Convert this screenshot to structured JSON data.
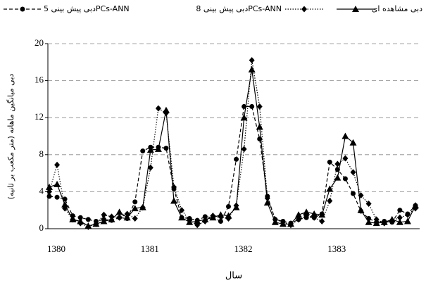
{
  "chart_data": {
    "type": "line",
    "x_label": "سال",
    "y_label": "دبی میانگین ماهانه (متر مکعب بر ثانیه)",
    "categories": [
      "1380",
      null,
      null,
      null,
      null,
      null,
      null,
      null,
      null,
      null,
      null,
      null,
      "1381",
      null,
      null,
      null,
      null,
      null,
      null,
      null,
      null,
      null,
      null,
      null,
      "1382",
      null,
      null,
      null,
      null,
      null,
      null,
      null,
      null,
      null,
      null,
      null,
      "1383",
      null,
      null,
      null,
      null,
      null,
      null,
      null,
      null,
      null,
      null,
      null
    ],
    "series": [
      {
        "name": "دبی مشاهده ای",
        "color": "#000000",
        "line_style": "solid",
        "marker": "triangle",
        "values": [
          4.5,
          4.8,
          2.6,
          1.0,
          0.8,
          0.3,
          0.5,
          0.8,
          1.0,
          1.8,
          1.2,
          2.2,
          2.3,
          8.5,
          8.6,
          12.8,
          3.0,
          1.2,
          0.7,
          0.8,
          1.0,
          1.2,
          1.5,
          1.4,
          2.3,
          12.0,
          17.2,
          11.0,
          2.8,
          0.7,
          0.5,
          0.5,
          1.5,
          1.8,
          1.6,
          1.5,
          4.3,
          5.5,
          10.0,
          9.3,
          2.0,
          0.7,
          0.6,
          0.7,
          1.0,
          0.7,
          0.8,
          2.5
        ]
      },
      {
        "name": "دبی پیش بینی 8PCs-ANN",
        "color": "#000000",
        "line_style": "dotted",
        "marker": "diamond",
        "values": [
          4.0,
          6.9,
          2.2,
          1.0,
          0.6,
          0.2,
          0.5,
          1.5,
          1.3,
          1.2,
          1.6,
          1.1,
          2.3,
          6.6,
          13.0,
          12.5,
          4.5,
          2.0,
          0.9,
          0.4,
          0.8,
          1.4,
          1.3,
          1.1,
          2.5,
          8.6,
          18.2,
          13.2,
          3.3,
          1.0,
          0.7,
          0.4,
          1.0,
          1.4,
          1.2,
          0.8,
          3.0,
          7.0,
          7.6,
          6.1,
          3.6,
          2.7,
          1.0,
          0.6,
          0.9,
          1.2,
          1.5,
          2.2
        ]
      },
      {
        "name": "دبی پیش بینی 5PCs-ANN",
        "color": "#000000",
        "line_style": "dashed",
        "marker": "circle",
        "values": [
          3.5,
          3.4,
          3.2,
          1.4,
          1.2,
          1.0,
          0.8,
          1.0,
          0.9,
          1.2,
          1.1,
          2.9,
          8.4,
          8.8,
          8.8,
          8.7,
          4.3,
          1.2,
          1.1,
          0.9,
          1.3,
          1.2,
          0.8,
          2.4,
          7.5,
          13.2,
          13.2,
          9.7,
          3.5,
          1.0,
          0.8,
          0.6,
          1.0,
          1.2,
          1.2,
          1.6,
          7.2,
          6.4,
          5.4,
          3.8,
          1.9,
          1.1,
          0.7,
          0.8,
          0.7,
          2.0,
          1.6,
          2.5
        ]
      }
    ],
    "ylim": [
      0,
      20
    ],
    "yticks": [
      0,
      4,
      8,
      12,
      16,
      20
    ],
    "grid": true,
    "legend": "top"
  }
}
